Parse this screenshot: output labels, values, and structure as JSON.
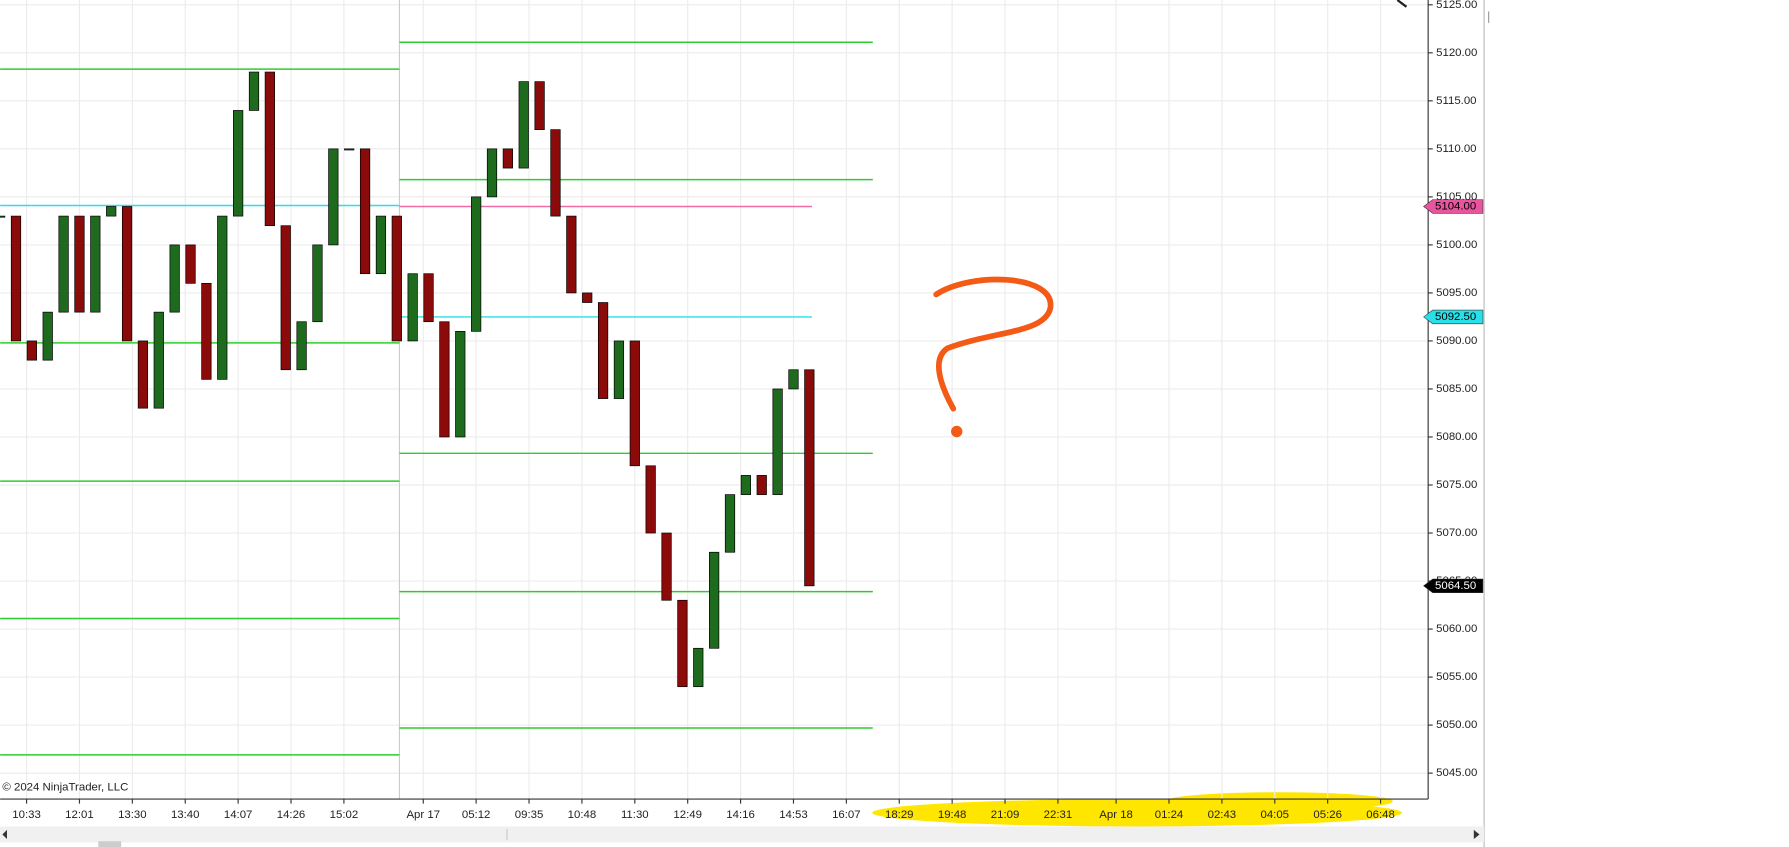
{
  "chart_data": {
    "type": "candlestick",
    "copyright": "© 2024 NinjaTrader, LLC",
    "x": [
      0,
      3,
      6,
      9,
      12,
      15,
      18,
      21,
      24,
      27,
      30,
      33,
      36,
      39,
      42,
      45,
      48,
      51,
      54,
      57,
      60,
      63,
      66,
      69,
      72,
      75,
      78,
      81,
      84,
      87,
      90,
      93,
      96,
      99,
      102,
      105,
      108,
      111,
      114,
      117,
      120,
      123,
      126,
      129,
      132,
      135,
      138,
      141,
      144,
      147,
      150,
      153
    ],
    "series": [
      {
        "colors": {
          "up": "#1e6b1e",
          "down": "#8b0a0a"
        },
        "values": [
          5103,
          5090,
          5088,
          5093,
          5103,
          5093,
          5103,
          5104,
          5090,
          5083,
          5093,
          5100,
          5096,
          5086,
          5103,
          5114,
          5118,
          5102,
          5087,
          5092,
          5100,
          5110,
          5110,
          5097,
          5103,
          5090,
          5097,
          5092,
          5080,
          5091,
          5105,
          5110,
          5108,
          5117,
          5112,
          5103,
          5095,
          5094,
          5084,
          5090,
          5077,
          5070,
          5063,
          5054,
          5058,
          5068,
          5074,
          5076,
          5074,
          5085,
          5087,
          5064.5
        ]
      }
    ],
    "xlim": [
      0,
      270
    ],
    "xticks": [
      {
        "value": 5,
        "label": "10:33"
      },
      {
        "value": 15,
        "label": "12:01"
      },
      {
        "value": 25,
        "label": "13:30"
      },
      {
        "value": 35,
        "label": "13:40"
      },
      {
        "value": 45,
        "label": "14:07"
      },
      {
        "value": 55,
        "label": "14:26"
      },
      {
        "value": 65,
        "label": "15:02"
      },
      {
        "value": 80,
        "label": "Apr 17"
      },
      {
        "value": 90,
        "label": "05:12"
      },
      {
        "value": 100,
        "label": "09:35"
      },
      {
        "value": 110,
        "label": "10:48"
      },
      {
        "value": 120,
        "label": "11:30"
      },
      {
        "value": 130,
        "label": "12:49"
      },
      {
        "value": 140,
        "label": "14:16"
      },
      {
        "value": 150,
        "label": "14:53"
      },
      {
        "value": 160,
        "label": "16:07"
      },
      {
        "value": 170,
        "label": "18:29"
      },
      {
        "value": 180,
        "label": "19:48"
      },
      {
        "value": 190,
        "label": "21:09"
      },
      {
        "value": 200,
        "label": "22:31"
      },
      {
        "value": 211,
        "label": "Apr 18"
      },
      {
        "value": 221,
        "label": "01:24"
      },
      {
        "value": 231,
        "label": "02:43"
      },
      {
        "value": 241,
        "label": "04:05"
      },
      {
        "value": 251,
        "label": "05:26"
      },
      {
        "value": 261,
        "label": "06:48"
      }
    ],
    "ylim": [
      5042.3,
      5125.5
    ],
    "yticks": [
      {
        "value": 5045,
        "label": "5045.00"
      },
      {
        "value": 5050,
        "label": "5050.00"
      },
      {
        "value": 5055,
        "label": "5055.00"
      },
      {
        "value": 5060,
        "label": "5060.00"
      },
      {
        "value": 5065,
        "label": "5065.00"
      },
      {
        "value": 5070,
        "label": "5070.00"
      },
      {
        "value": 5075,
        "label": "5075.00"
      },
      {
        "value": 5080,
        "label": "5080.00"
      },
      {
        "value": 5085,
        "label": "5085.00"
      },
      {
        "value": 5090,
        "label": "5090.00"
      },
      {
        "value": 5095,
        "label": "5095.00"
      },
      {
        "value": 5100,
        "label": "5100.00"
      },
      {
        "value": 5105,
        "label": "5105.00"
      },
      {
        "value": 5110,
        "label": "5110.00"
      },
      {
        "value": 5115,
        "label": "5115.00"
      },
      {
        "value": 5120,
        "label": "5120.00"
      },
      {
        "value": 5125,
        "label": "5125.00"
      }
    ],
    "grid": true,
    "session_break": 75.5,
    "levels": [
      {
        "value": 5118.3,
        "from": 0,
        "to": 75.5,
        "color": "#2ecc2e"
      },
      {
        "value": 5089.8,
        "from": 0,
        "to": 75.5,
        "color": "#2ecc2e"
      },
      {
        "value": 5075.4,
        "from": 0,
        "to": 75.5,
        "color": "#2ecc2e"
      },
      {
        "value": 5061.1,
        "from": 0,
        "to": 75.5,
        "color": "#2ecc2e"
      },
      {
        "value": 5046.9,
        "from": 0,
        "to": 75.5,
        "color": "#2ecc2e"
      },
      {
        "value": 5104.1,
        "from": 0,
        "to": 75.5,
        "color": "#28e0e8"
      },
      {
        "value": 5121.1,
        "from": 75.5,
        "to": 165,
        "color": "#2ecc2e"
      },
      {
        "value": 5106.8,
        "from": 75.5,
        "to": 165,
        "color": "#2ecc2e"
      },
      {
        "value": 5078.3,
        "from": 75.5,
        "to": 165,
        "color": "#2ecc2e"
      },
      {
        "value": 5063.9,
        "from": 75.5,
        "to": 165,
        "color": "#2ecc2e"
      },
      {
        "value": 5049.7,
        "from": 75.5,
        "to": 165,
        "color": "#2ecc2e"
      },
      {
        "value": 5104,
        "from": 75.5,
        "to": 153.5,
        "color": "#f06aa8"
      },
      {
        "value": 5092.5,
        "from": 75.5,
        "to": 153.5,
        "color": "#28e0e8"
      }
    ],
    "price_markers": [
      {
        "value": 5104,
        "label": "5104.00",
        "color": "#e8549e"
      },
      {
        "value": 5092.5,
        "label": "5092.50",
        "color": "#28e0e8"
      },
      {
        "value": 5064.5,
        "label": "5064.50",
        "color": "#000000"
      }
    ]
  }
}
